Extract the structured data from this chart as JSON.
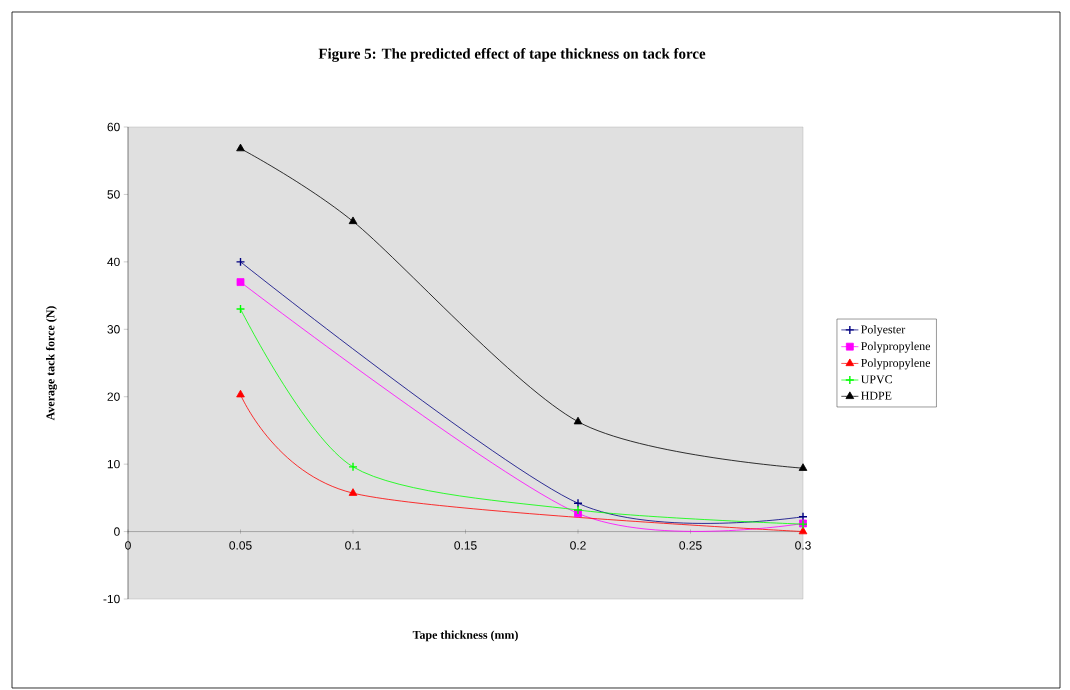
{
  "chart_data": {
    "type": "line",
    "title": "Figure 5: The predicted effect of tape thickness on tack force",
    "xlabel": "Tape thickness (mm)",
    "ylabel": "Average tack force (N)",
    "xlim": [
      0,
      0.3
    ],
    "ylim": [
      -10,
      60
    ],
    "xticks": [
      0,
      0.05,
      0.1,
      0.15,
      0.2,
      0.25,
      0.3
    ],
    "yticks": [
      -10,
      0,
      10,
      20,
      30,
      40,
      50,
      60
    ],
    "legend": "right",
    "grid": false,
    "series": [
      {
        "name": "Polyester",
        "color": "#000080",
        "marker": "cross",
        "x": [
          0.05,
          0.2,
          0.3
        ],
        "values": [
          40,
          4.2,
          2.2
        ]
      },
      {
        "name": "Polypropylene",
        "color": "#ff00ff",
        "marker": "square",
        "x": [
          0.05,
          0.2,
          0.3
        ],
        "values": [
          37,
          2.7,
          1.2
        ]
      },
      {
        "name": "Polypropylene",
        "color": "#ff0000",
        "marker": "triangle",
        "x": [
          0.05,
          0.1,
          0.2,
          0.3
        ],
        "values": [
          20.3,
          5.7,
          null,
          0
        ]
      },
      {
        "name": "UPVC",
        "color": "#00ff00",
        "marker": "cross",
        "x": [
          0.05,
          0.1,
          0.2,
          0.3
        ],
        "values": [
          33,
          9.6,
          3.2,
          1.1
        ]
      },
      {
        "name": "HDPE",
        "color": "#000000",
        "marker": "triangle",
        "x": [
          0.05,
          0.1,
          0.2,
          0.3
        ],
        "values": [
          56.8,
          46,
          16.3,
          9.4
        ]
      }
    ]
  }
}
